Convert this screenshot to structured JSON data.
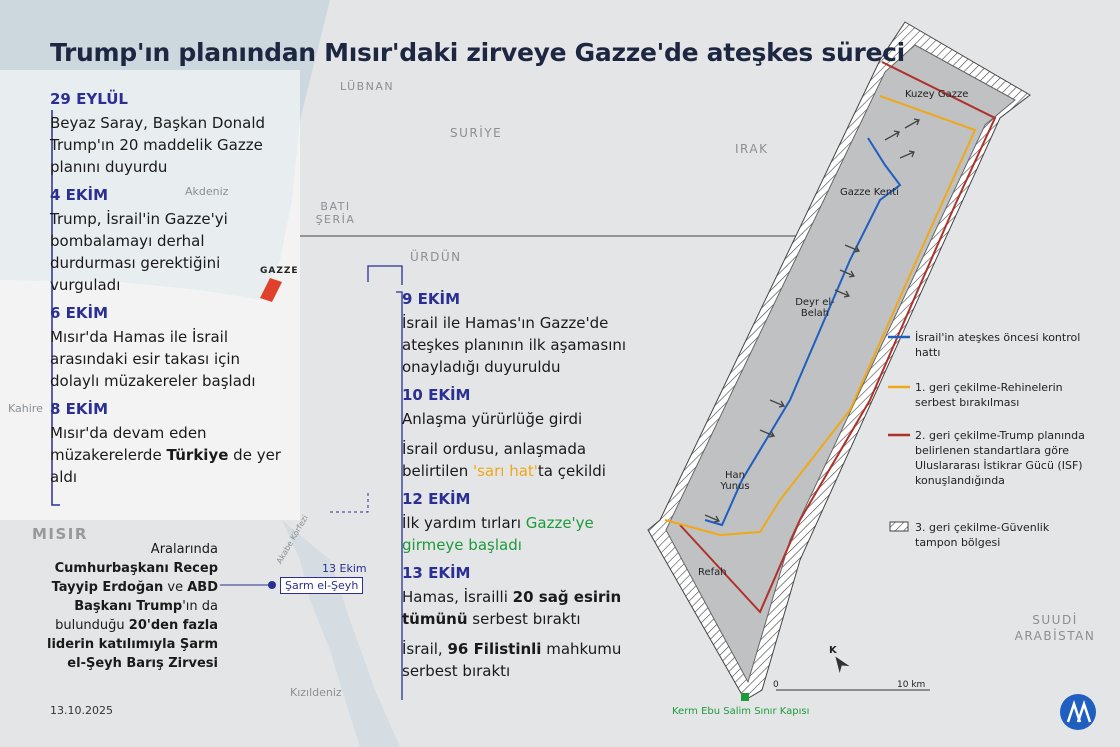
{
  "title": "Trump'ın planından Mısır'daki zirveye Gazze'de ateşkes süreci",
  "date": "13.10.2025",
  "timeline_left": [
    {
      "date": "29 EYLÜL",
      "paragraphs": [
        [
          {
            "text": "Beyaz Saray, Başkan Donald Trump'ın 20 maddelik Gazze planını duyurdu"
          }
        ]
      ]
    },
    {
      "date": "4 EKİM",
      "paragraphs": [
        [
          {
            "text": "Trump, İsrail'in Gazze'yi bombalamayı derhal durdurması gerektiğini vurguladı"
          }
        ]
      ]
    },
    {
      "date": "6 EKİM",
      "paragraphs": [
        [
          {
            "text": "Mısır'da Hamas ile İsrail arasındaki esir takası için dolaylı müzakereler başladı"
          }
        ]
      ]
    },
    {
      "date": "8 EKİM",
      "paragraphs": [
        [
          {
            "text": "Mısır'da devam eden müzakerelerde "
          },
          {
            "text": "Türkiye",
            "bold": true
          },
          {
            "text": " de yer aldı"
          }
        ]
      ]
    }
  ],
  "timeline_right": [
    {
      "date": "9 EKİM",
      "paragraphs": [
        [
          {
            "text": "İsrail ile Hamas'ın Gazze'de ateşkes planının ilk aşamasını onayladığı duyuruldu"
          }
        ]
      ]
    },
    {
      "date": "10 EKİM",
      "paragraphs": [
        [
          {
            "text": "Anlaşma yürürlüğe girdi"
          }
        ],
        [
          {
            "text": "İsrail ordusu, anlaşmada belirtilen "
          },
          {
            "text": "'sarı hat'",
            "color": "#f0a818"
          },
          {
            "text": "ta çekildi"
          }
        ]
      ]
    },
    {
      "date": "12 EKİM",
      "paragraphs": [
        [
          {
            "text": "İlk yardım tırları "
          },
          {
            "text": "Gazze'ye girmeye başladı",
            "color": "#1e9a3c"
          }
        ]
      ]
    },
    {
      "date": "13 EKİM",
      "paragraphs": [
        [
          {
            "text": "Hamas, İsrailli "
          },
          {
            "text": "20 sağ esirin tümünü",
            "bold": true
          },
          {
            "text": " serbest bıraktı"
          }
        ],
        [
          {
            "text": "İsrail, "
          },
          {
            "text": "96 Filistinli",
            "bold": true
          },
          {
            "text": " mahkumu serbest bıraktı"
          }
        ]
      ]
    }
  ],
  "summit": {
    "date_label": "13 Ekim",
    "place": "Şarm el-Şeyh",
    "note": [
      {
        "text": "Aralarında "
      },
      {
        "text": "Cumhurbaşkanı Recep Tayyip Erdoğan",
        "bold": true
      },
      {
        "text": " ve "
      },
      {
        "text": "ABD Başkanı Trump",
        "bold": true
      },
      {
        "text": "'ın da bulunduğu "
      },
      {
        "text": "20'den fazla liderin katılımıyla Şarm el-Şeyh Barış Zirvesi",
        "bold": true
      }
    ]
  },
  "map_labels": {
    "sea": "Akdeniz",
    "lebanon": "LÜBNAN",
    "syria": "SURİYE",
    "iraq": "IRAK",
    "west_bank": "BATI ŞERİA",
    "jordan": "ÜRDÜN",
    "gaza": "GAZZE",
    "cairo": "Kahire",
    "egypt": "MISIR",
    "red_sea": "Kızıldeniz",
    "saudi": "SUUDİ ARABİSTAN",
    "aqaba": "Akabe Körfezi"
  },
  "gaza_map": {
    "labels": [
      "Kuzey Gazze",
      "Gazze Kenti",
      "Deyr el-Belah",
      "Han Yunus",
      "Refah"
    ],
    "crossing": "Kerm Ebu Salim Sınır Kapısı",
    "scale": [
      "0",
      "10 km"
    ],
    "north": "K"
  },
  "legend": [
    {
      "label": "İsrail'in ateşkes öncesi kontrol hattı",
      "color": "#1f5fbf"
    },
    {
      "label": "1. geri çekilme-Rehinelerin serbest bırakılması",
      "color": "#f0a818"
    },
    {
      "label": "2. geri çekilme-Trump planında belirlenen standartlara göre Uluslararası İstikrar Gücü (ISF) konuşlandığında",
      "color": "#b0302a"
    },
    {
      "label": "3. geri çekilme-Güvenlik tampon bölgesi",
      "pattern": "hatch"
    }
  ]
}
